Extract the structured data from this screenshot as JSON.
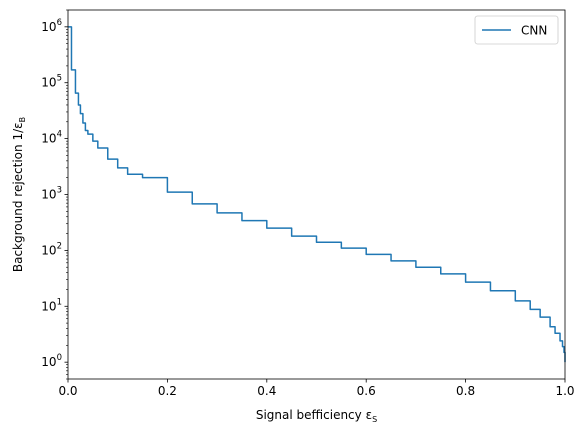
{
  "chart_data": {
    "type": "line",
    "title": "",
    "xlabel": "Signal befficiency ε",
    "xlabel_sub": "S",
    "ylabel": "Background rejection 1/ε",
    "ylabel_sub": "B",
    "xlim": [
      0.0,
      1.0
    ],
    "ylim": [
      0.5,
      2000000
    ],
    "yscale": "log",
    "grid": false,
    "legend_position": "top-right",
    "x_ticks": [
      {
        "value": 0.0,
        "label": "0.0"
      },
      {
        "value": 0.2,
        "label": "0.2"
      },
      {
        "value": 0.4,
        "label": "0.4"
      },
      {
        "value": 0.6,
        "label": "0.6"
      },
      {
        "value": 0.8,
        "label": "0.8"
      },
      {
        "value": 1.0,
        "label": "1.0"
      }
    ],
    "y_ticks": [
      {
        "value": 1,
        "base": "10",
        "exp": "0"
      },
      {
        "value": 10,
        "base": "10",
        "exp": "1"
      },
      {
        "value": 100,
        "base": "10",
        "exp": "2"
      },
      {
        "value": 1000,
        "base": "10",
        "exp": "3"
      },
      {
        "value": 10000,
        "base": "10",
        "exp": "4"
      },
      {
        "value": 100000,
        "base": "10",
        "exp": "5"
      },
      {
        "value": 1000000,
        "base": "10",
        "exp": "6"
      }
    ],
    "series": [
      {
        "name": "CNN",
        "color": "#1f77b4",
        "step": true,
        "x": [
          0.0,
          0.007,
          0.015,
          0.021,
          0.025,
          0.03,
          0.035,
          0.04,
          0.05,
          0.06,
          0.08,
          0.1,
          0.12,
          0.15,
          0.2,
          0.25,
          0.3,
          0.35,
          0.4,
          0.45,
          0.5,
          0.55,
          0.6,
          0.65,
          0.7,
          0.75,
          0.8,
          0.85,
          0.9,
          0.93,
          0.95,
          0.97,
          0.98,
          0.99,
          0.995,
          0.998,
          1.0
        ],
        "y": [
          1000000,
          170000,
          65000,
          40000,
          28000,
          19000,
          14000,
          12000,
          9000,
          6800,
          4300,
          3000,
          2300,
          2000,
          1100,
          680,
          470,
          340,
          250,
          180,
          140,
          110,
          85,
          65,
          50,
          38,
          27,
          19,
          12.5,
          8.8,
          6.4,
          4.3,
          3.3,
          2.4,
          1.9,
          1.5,
          1.0
        ]
      }
    ]
  }
}
